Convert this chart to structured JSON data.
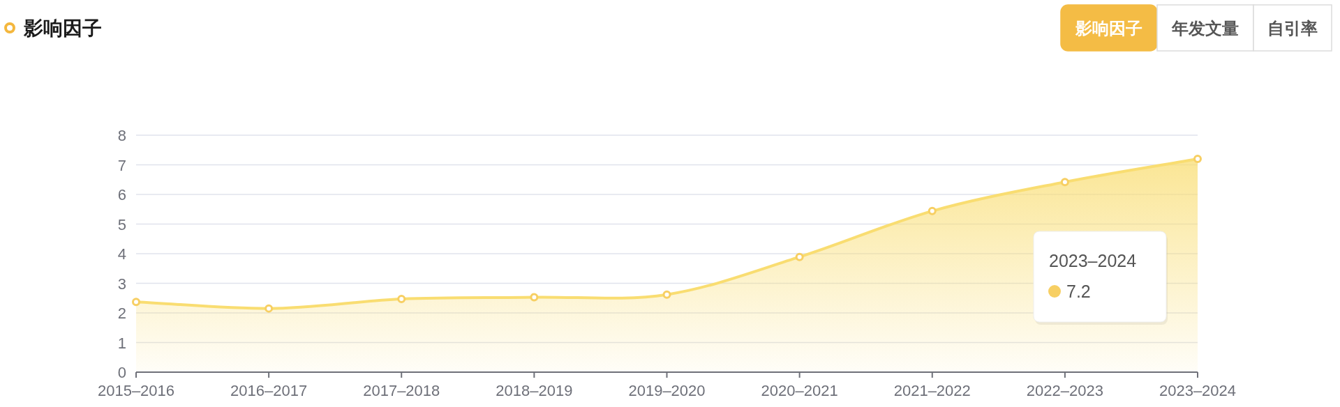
{
  "chart_data": {
    "type": "area",
    "title": "影响因子",
    "categories": [
      "2015–2016",
      "2016–2017",
      "2017–2018",
      "2018–2019",
      "2019–2020",
      "2020–2021",
      "2021–2022",
      "2022–2023",
      "2023–2024"
    ],
    "series": [
      {
        "color": "#f9dd71",
        "values": [
          2.37,
          2.15,
          2.47,
          2.53,
          2.62,
          3.89,
          5.44,
          6.42,
          7.2
        ]
      }
    ],
    "ylim": [
      0,
      8
    ],
    "yticks": [
      0,
      1,
      2,
      3,
      4,
      5,
      6,
      7,
      8
    ],
    "grid": "y",
    "marker": "circle",
    "annotations": [
      "2023–2024",
      "7.2",
      "影响因子",
      "年发文量",
      "自引率"
    ]
  }
}
